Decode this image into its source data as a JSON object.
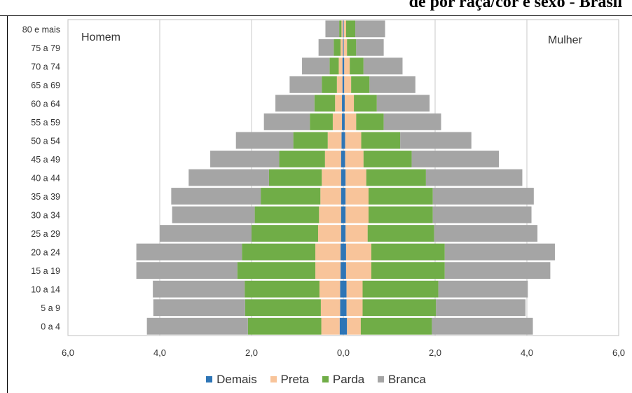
{
  "header": {
    "cut_title": "de por raça/cor e sexo - Brasil"
  },
  "colors": {
    "Demais": "#2e75b6",
    "Preta": "#f8c49a",
    "Parda": "#70ad47",
    "Branca": "#a5a5a5"
  },
  "chart_data": {
    "type": "bar",
    "orientation": "horizontal-population-pyramid",
    "stacked": true,
    "categories": [
      "0 a 4",
      "5 a 9",
      "10 a 14",
      "15 a 19",
      "20 a 24",
      "25 a 29",
      "30 a 34",
      "35 a 39",
      "40 a 44",
      "45 a 49",
      "50 a 54",
      "55 a 59",
      "60 a 64",
      "65 a 69",
      "70 a 74",
      "75 a 79",
      "80 e mais"
    ],
    "side_labels": {
      "left": "Homem",
      "right": "Mulher"
    },
    "xlim": [
      -6,
      6
    ],
    "x_ticks": [
      "6,0",
      "4,0",
      "2,0",
      "0,0",
      "2,0",
      "4,0",
      "6,0"
    ],
    "grid": true,
    "legend": [
      "Demais",
      "Preta",
      "Parda",
      "Branca"
    ],
    "legend_position": "bottom",
    "series": [
      {
        "name": "Demais",
        "male": [
          0.08,
          0.07,
          0.07,
          0.06,
          0.06,
          0.05,
          0.05,
          0.05,
          0.05,
          0.05,
          0.04,
          0.03,
          0.03,
          0.02,
          0.02,
          0.01,
          0.01
        ],
        "female": [
          0.08,
          0.07,
          0.07,
          0.06,
          0.06,
          0.05,
          0.05,
          0.05,
          0.05,
          0.04,
          0.04,
          0.03,
          0.03,
          0.02,
          0.02,
          0.01,
          0.01
        ]
      },
      {
        "name": "Preta",
        "male": [
          0.4,
          0.42,
          0.45,
          0.55,
          0.55,
          0.5,
          0.48,
          0.45,
          0.42,
          0.35,
          0.3,
          0.2,
          0.15,
          0.12,
          0.08,
          0.05,
          0.03
        ],
        "female": [
          0.3,
          0.35,
          0.35,
          0.55,
          0.55,
          0.48,
          0.5,
          0.5,
          0.45,
          0.4,
          0.35,
          0.25,
          0.2,
          0.15,
          0.12,
          0.07,
          0.05
        ]
      },
      {
        "name": "Parda",
        "male": [
          1.6,
          1.65,
          1.63,
          1.7,
          1.6,
          1.45,
          1.4,
          1.3,
          1.15,
          1.0,
          0.75,
          0.5,
          0.45,
          0.33,
          0.2,
          0.15,
          0.05
        ],
        "female": [
          1.55,
          1.6,
          1.65,
          1.6,
          1.6,
          1.45,
          1.4,
          1.4,
          1.3,
          1.05,
          0.85,
          0.6,
          0.5,
          0.4,
          0.3,
          0.2,
          0.2
        ]
      },
      {
        "name": "Branca",
        "male": [
          2.2,
          2.0,
          2.0,
          2.2,
          2.3,
          2.0,
          1.8,
          1.95,
          1.75,
          1.5,
          1.25,
          1.0,
          0.85,
          0.7,
          0.6,
          0.33,
          0.3
        ],
        "female": [
          2.2,
          1.95,
          1.95,
          2.3,
          2.4,
          2.25,
          2.15,
          2.2,
          2.1,
          1.9,
          1.55,
          1.25,
          1.15,
          1.0,
          0.85,
          0.6,
          0.65
        ]
      }
    ]
  }
}
